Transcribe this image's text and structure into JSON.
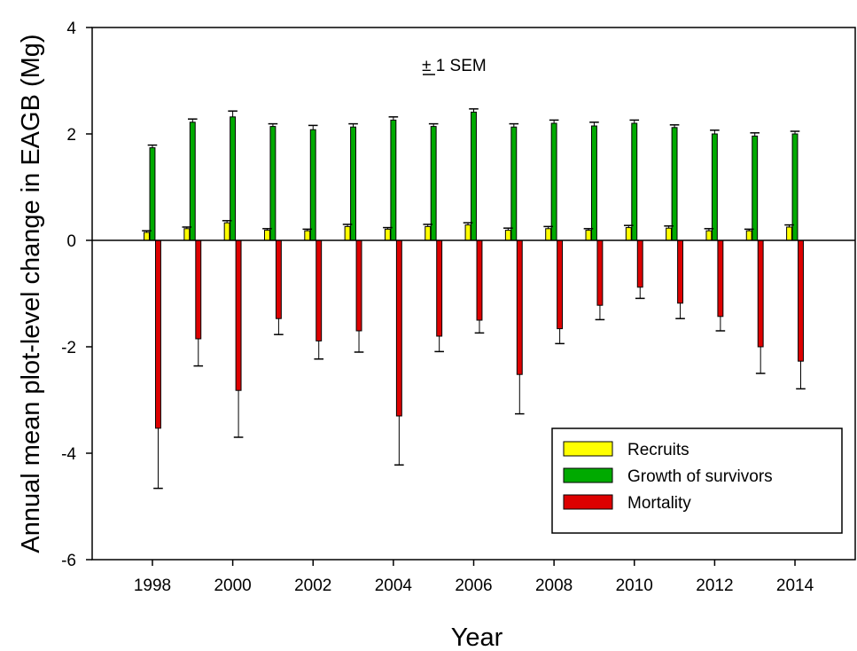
{
  "chart_data": {
    "type": "bar",
    "xlabel": "Year",
    "ylabel": "Annual mean plot-level change in EAGB (Mg)",
    "ylim": [
      -6,
      4
    ],
    "yticks": [
      -6,
      -4,
      -2,
      0,
      2,
      4
    ],
    "ytick_labels": [
      "-6",
      "-4",
      "-2",
      "0",
      "2",
      "4"
    ],
    "xlim": [
      1996.5,
      2015.5
    ],
    "xticks": [
      1998,
      2000,
      2002,
      2004,
      2006,
      2008,
      2010,
      2012,
      2014
    ],
    "xtick_labels": [
      "1998",
      "2000",
      "2002",
      "2004",
      "2006",
      "2008",
      "2010",
      "2012",
      "2014"
    ],
    "annotation": "± 1 SEM",
    "grid": false,
    "legend_position": "bottom-right",
    "categories": [
      1998,
      1999,
      2000,
      2001,
      2002,
      2003,
      2004,
      2005,
      2006,
      2007,
      2008,
      2009,
      2010,
      2011,
      2012,
      2013,
      2014
    ],
    "series": [
      {
        "name": "Recruits",
        "color": "#ffff00",
        "values": [
          0.15,
          0.22,
          0.33,
          0.19,
          0.18,
          0.26,
          0.21,
          0.26,
          0.29,
          0.19,
          0.22,
          0.19,
          0.24,
          0.23,
          0.18,
          0.18,
          0.25
        ],
        "errors": [
          0.03,
          0.03,
          0.04,
          0.03,
          0.03,
          0.04,
          0.03,
          0.04,
          0.04,
          0.04,
          0.04,
          0.03,
          0.04,
          0.04,
          0.04,
          0.03,
          0.04
        ]
      },
      {
        "name": "Growth of survivors",
        "color": "#00aa00",
        "values": [
          1.74,
          2.22,
          2.32,
          2.14,
          2.08,
          2.13,
          2.26,
          2.14,
          2.41,
          2.13,
          2.2,
          2.15,
          2.2,
          2.12,
          2.0,
          1.96,
          2.0
        ],
        "errors": [
          0.05,
          0.06,
          0.11,
          0.05,
          0.08,
          0.06,
          0.06,
          0.05,
          0.06,
          0.06,
          0.06,
          0.07,
          0.06,
          0.05,
          0.07,
          0.06,
          0.05
        ]
      },
      {
        "name": "Mortality",
        "color": "#dd0000",
        "values": [
          -3.53,
          -1.85,
          -2.82,
          -1.47,
          -1.89,
          -1.7,
          -3.3,
          -1.8,
          -1.5,
          -2.52,
          -1.66,
          -1.22,
          -0.88,
          -1.18,
          -1.43,
          -2.0,
          -2.27
        ],
        "errors": [
          1.13,
          0.51,
          0.88,
          0.3,
          0.34,
          0.4,
          0.92,
          0.29,
          0.24,
          0.74,
          0.28,
          0.27,
          0.21,
          0.29,
          0.27,
          0.5,
          0.52
        ]
      }
    ]
  }
}
